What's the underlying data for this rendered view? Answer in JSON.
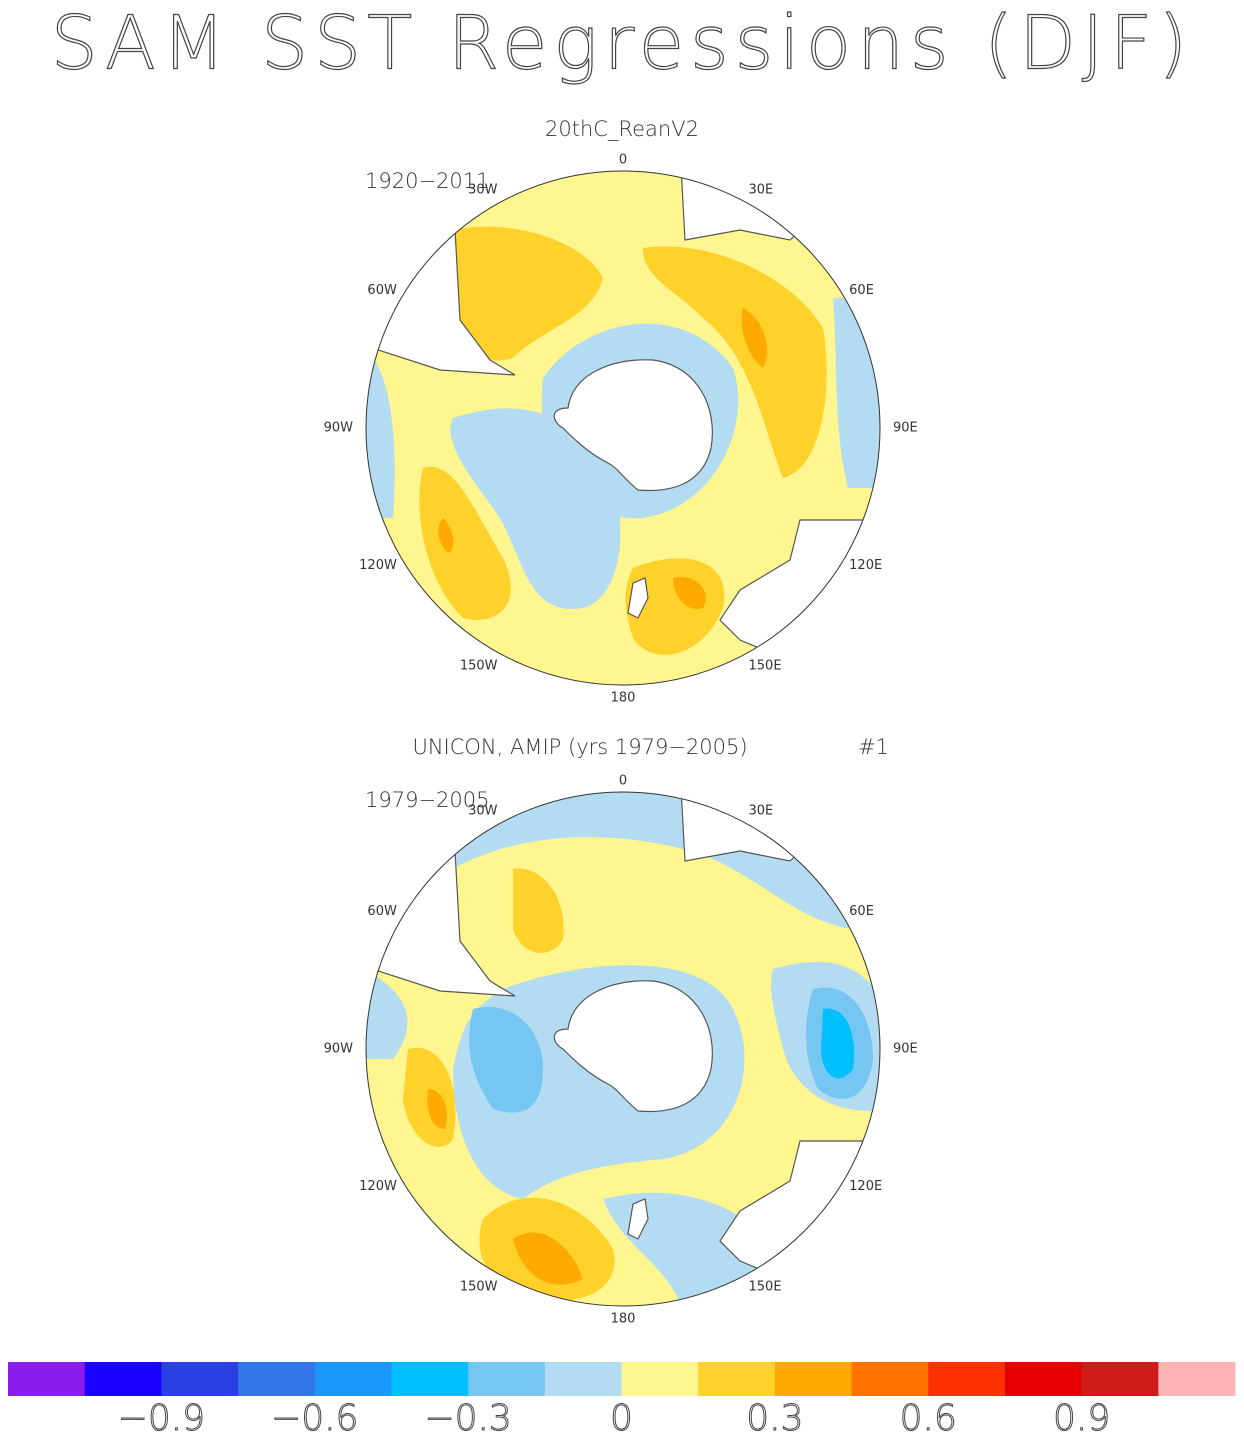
{
  "title": "SAM SST Regressions (DJF)",
  "longitude_labels": [
    "0",
    "30E",
    "60E",
    "90E",
    "120E",
    "150E",
    "180",
    "150W",
    "120W",
    "90W",
    "60W",
    "30W"
  ],
  "panels": [
    {
      "title": "20thC_ReanV2",
      "period": "1920−2011"
    },
    {
      "title": "UNICON, AMIP (yrs 1979−2005)",
      "tag": "#1",
      "period": "1979−2005"
    }
  ],
  "colorbar": {
    "colors": [
      "#8b1eef",
      "#1900ff",
      "#2b3fe3",
      "#3175e6",
      "#1b97fb",
      "#00bfff",
      "#76c6f2",
      "#b3dcf2",
      "#fff68f",
      "#ffd12b",
      "#ffaa00",
      "#ff7200",
      "#ff3000",
      "#e60000",
      "#ce1a1a",
      "#ffb4b4"
    ],
    "lim": [
      -1.2,
      1.2
    ],
    "ticks": [
      {
        "value": -0.9,
        "label": "−0.9"
      },
      {
        "value": -0.6,
        "label": "−0.6"
      },
      {
        "value": -0.3,
        "label": "−0.3"
      },
      0,
      0.3,
      0.6,
      0.9
    ]
  }
}
